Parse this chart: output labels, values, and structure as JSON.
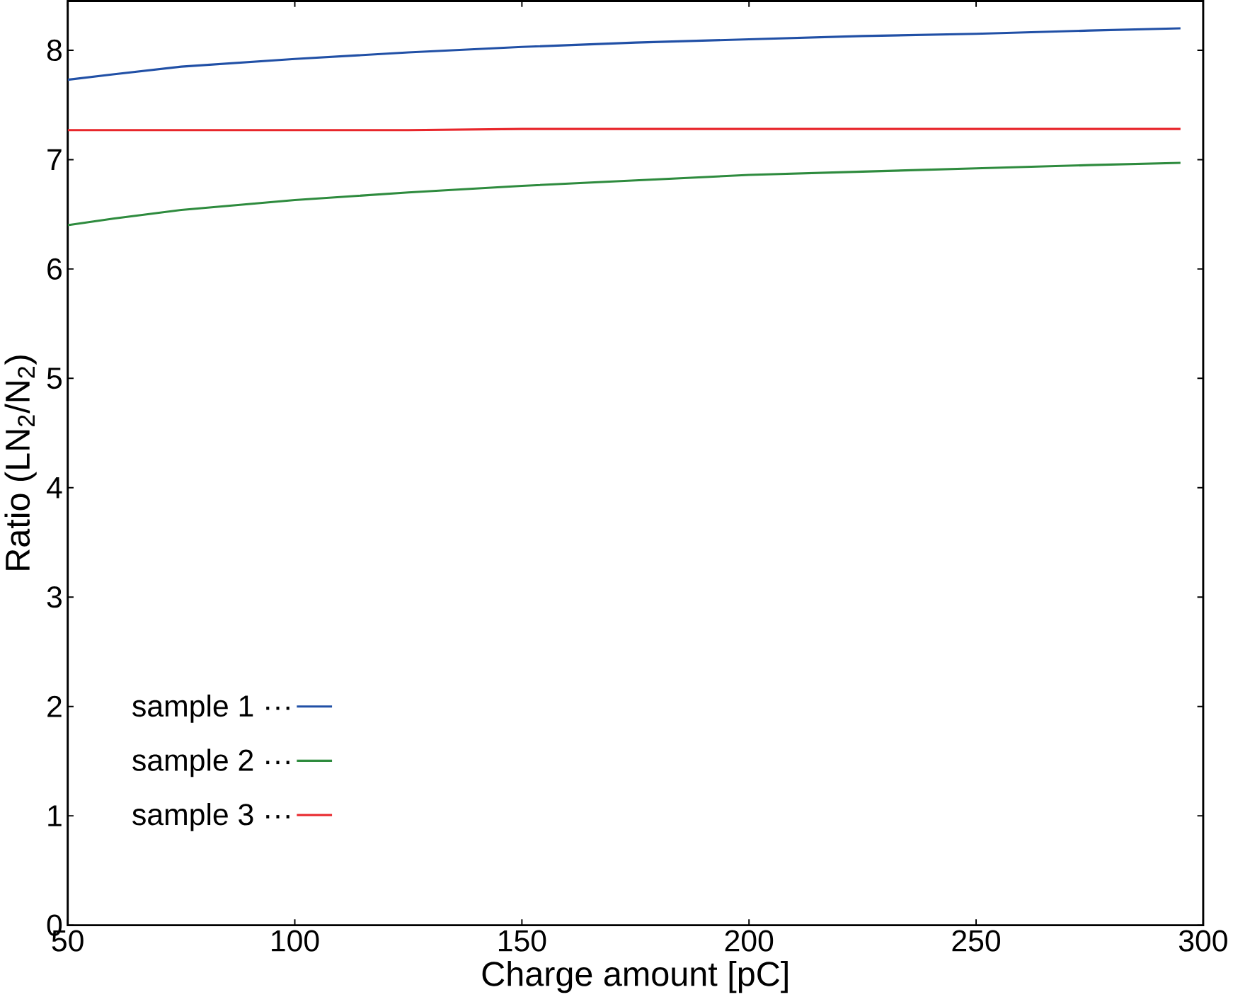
{
  "chart_data": {
    "type": "line",
    "xlabel": "Charge amount [pC]",
    "ylabel": "Ratio (LN$_{2}$/N$_{2}$)",
    "x": [
      50,
      60,
      75,
      100,
      125,
      150,
      175,
      200,
      225,
      250,
      275,
      295
    ],
    "series": [
      {
        "name": "sample 1 ···",
        "color": "#2150a6",
        "values": [
          7.73,
          7.78,
          7.85,
          7.92,
          7.98,
          8.03,
          8.07,
          8.1,
          8.13,
          8.15,
          8.18,
          8.2
        ]
      },
      {
        "name": "sample 2 ···",
        "color": "#2e8b3e",
        "values": [
          6.4,
          6.46,
          6.54,
          6.63,
          6.7,
          6.76,
          6.81,
          6.86,
          6.89,
          6.92,
          6.95,
          6.97
        ]
      },
      {
        "name": "sample 3 ···",
        "color": "#e8262b",
        "values": [
          7.27,
          7.27,
          7.27,
          7.27,
          7.27,
          7.28,
          7.28,
          7.28,
          7.28,
          7.28,
          7.28,
          7.28
        ]
      }
    ],
    "xlim": [
      50,
      300
    ],
    "ylim": [
      0,
      8.45
    ],
    "xticks": [
      50,
      100,
      150,
      200,
      250,
      300
    ],
    "yticks": [
      0,
      1,
      2,
      3,
      4,
      5,
      6,
      7,
      8
    ],
    "legend": "bottom left",
    "grid": false,
    "marker": "none",
    "line_style": "solid"
  }
}
